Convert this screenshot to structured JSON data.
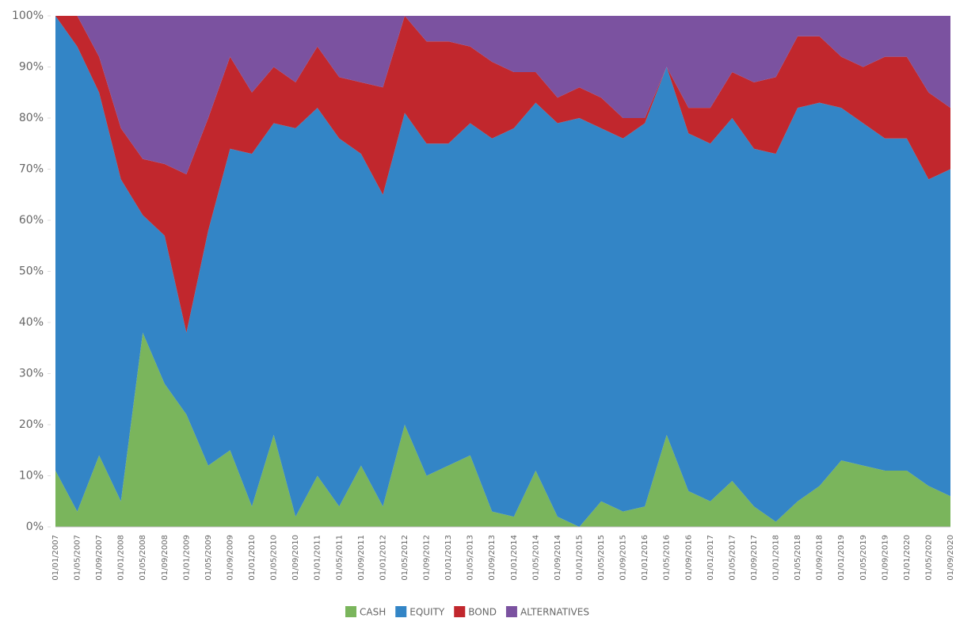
{
  "chart_data": {
    "type": "stacked-area",
    "categories": [
      "01/01/2007",
      "01/05/2007",
      "01/09/2007",
      "01/01/2008",
      "01/05/2008",
      "01/09/2008",
      "01/01/2009",
      "01/05/2009",
      "01/09/2009",
      "01/01/2010",
      "01/05/2010",
      "01/09/2010",
      "01/01/2011",
      "01/05/2011",
      "01/09/2011",
      "01/01/2012",
      "01/05/2012",
      "01/09/2012",
      "01/01/2013",
      "01/05/2013",
      "01/09/2013",
      "01/01/2014",
      "01/05/2014",
      "01/09/2014",
      "01/01/2015",
      "01/05/2015",
      "01/09/2015",
      "01/01/2016",
      "01/05/2016",
      "01/09/2016",
      "01/01/2017",
      "01/05/2017",
      "01/09/2017",
      "01/01/2018",
      "01/05/2018",
      "01/09/2018",
      "01/01/2019",
      "01/05/2019",
      "01/09/2019",
      "01/01/2020",
      "01/05/2020",
      "01/09/2020"
    ],
    "series": [
      {
        "name": "CASH",
        "color": "#7ab55c",
        "values": [
          11,
          3,
          14,
          5,
          38,
          28,
          22,
          12,
          15,
          4,
          18,
          2,
          10,
          4,
          12,
          4,
          20,
          10,
          12,
          14,
          3,
          2,
          11,
          2,
          0,
          5,
          3,
          4,
          18,
          7,
          5,
          9,
          4,
          1,
          5,
          8,
          13,
          12,
          11,
          11,
          8,
          6
        ]
      },
      {
        "name": "EQUITY",
        "color": "#3385c6",
        "values": [
          89,
          91,
          71,
          63,
          23,
          29,
          16,
          46,
          59,
          69,
          61,
          76,
          72,
          72,
          61,
          61,
          61,
          65,
          63,
          65,
          73,
          76,
          72,
          77,
          80,
          73,
          73,
          75,
          72,
          70,
          70,
          71,
          70,
          72,
          77,
          75,
          69,
          67,
          65,
          65,
          60,
          64
        ]
      },
      {
        "name": "BOND",
        "color": "#c1272d",
        "values": [
          0,
          6,
          7,
          10,
          11,
          14,
          31,
          22,
          18,
          12,
          11,
          9,
          12,
          12,
          14,
          21,
          19,
          20,
          20,
          15,
          15,
          11,
          6,
          5,
          6,
          6,
          4,
          1,
          0,
          5,
          7,
          9,
          13,
          15,
          14,
          13,
          10,
          11,
          16,
          16,
          17,
          12
        ]
      },
      {
        "name": "ALTERNATIVES",
        "color": "#7b52a0",
        "values": [
          0,
          0,
          8,
          22,
          28,
          29,
          31,
          20,
          8,
          15,
          10,
          13,
          6,
          12,
          13,
          14,
          0,
          5,
          5,
          6,
          9,
          11,
          11,
          16,
          14,
          16,
          20,
          20,
          10,
          18,
          18,
          11,
          13,
          12,
          4,
          4,
          8,
          10,
          8,
          8,
          15,
          18
        ]
      }
    ],
    "ylim": [
      0,
      100
    ],
    "yticks": [
      {
        "value": 0,
        "label": "0%"
      },
      {
        "value": 10,
        "label": "10%"
      },
      {
        "value": 20,
        "label": "20%"
      },
      {
        "value": 30,
        "label": "30%"
      },
      {
        "value": 40,
        "label": "40%"
      },
      {
        "value": 50,
        "label": "50%"
      },
      {
        "value": 60,
        "label": "60%"
      },
      {
        "value": 70,
        "label": "70%"
      },
      {
        "value": 80,
        "label": "80%"
      },
      {
        "value": 90,
        "label": "90%"
      },
      {
        "value": 100,
        "label": "100%"
      }
    ]
  }
}
